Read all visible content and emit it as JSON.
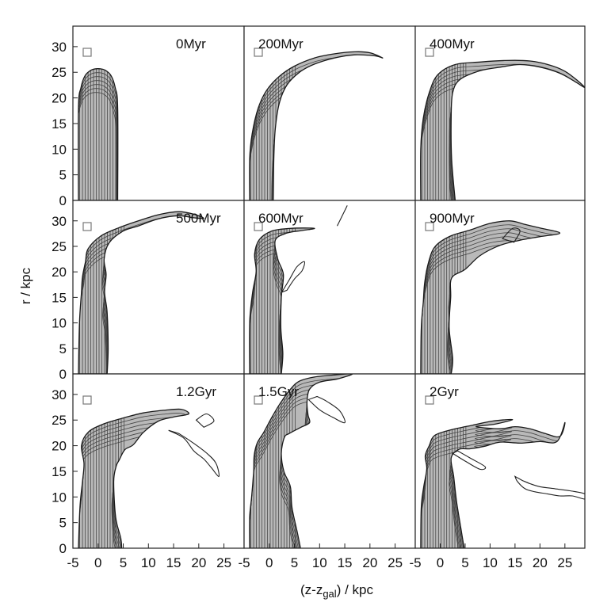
{
  "chart_data": {
    "type": "contour",
    "grid": {
      "rows": 3,
      "cols": 3
    },
    "xlabel": "(z-z",
    "xlabel_sub": "gal",
    "xlabel_tail": ") / kpc",
    "ylabel": "r / kpc",
    "xlim": [
      -5,
      29
    ],
    "ylim": [
      0,
      34
    ],
    "xticks": [
      "-5",
      "0",
      "5",
      "10",
      "15",
      "20",
      "25"
    ],
    "yticks": [
      "0",
      "5",
      "10",
      "15",
      "20",
      "25",
      "30"
    ],
    "panels": [
      {
        "label": "0Myr",
        "time_myr": 0,
        "outer_outline": [
          [
            -3.9,
            0
          ],
          [
            -3.9,
            18
          ],
          [
            -3.4,
            22
          ],
          [
            -2.6,
            24.3
          ],
          [
            -1.4,
            25.4
          ],
          [
            0,
            25.7
          ],
          [
            1.4,
            25.4
          ],
          [
            2.6,
            24.3
          ],
          [
            3.4,
            22
          ],
          [
            3.9,
            18
          ],
          [
            3.9,
            0
          ]
        ],
        "streams": []
      },
      {
        "label": "200Myr",
        "time_myr": 200,
        "outer_outline": [
          [
            -3.9,
            0
          ],
          [
            -3.9,
            8
          ],
          [
            -3.4,
            13
          ],
          [
            -2.2,
            18
          ],
          [
            -0.5,
            21.5
          ],
          [
            2,
            24.2
          ],
          [
            5,
            26.2
          ],
          [
            9,
            27.8
          ],
          [
            13,
            28.6
          ],
          [
            17,
            29
          ],
          [
            20,
            28.8
          ],
          [
            22.5,
            27.8
          ],
          [
            21,
            28.2
          ],
          [
            17,
            28.4
          ],
          [
            13,
            27.8
          ],
          [
            9,
            26.6
          ],
          [
            6,
            25
          ],
          [
            3.5,
            22.5
          ],
          [
            2,
            19
          ],
          [
            1.2,
            14
          ],
          [
            0.9,
            8
          ],
          [
            0.8,
            0
          ]
        ],
        "streams": []
      },
      {
        "label": "400Myr",
        "time_myr": 400,
        "outer_outline": [
          [
            -3.9,
            0
          ],
          [
            -3.9,
            10
          ],
          [
            -3.4,
            16
          ],
          [
            -2.2,
            21
          ],
          [
            -0.5,
            24.5
          ],
          [
            3,
            26.5
          ],
          [
            8,
            27
          ],
          [
            13,
            27.3
          ],
          [
            18,
            27.2
          ],
          [
            22,
            26.4
          ],
          [
            25,
            25.2
          ],
          [
            27.5,
            23.4
          ],
          [
            29,
            22
          ],
          [
            27,
            23.2
          ],
          [
            24,
            24.8
          ],
          [
            20,
            26
          ],
          [
            16,
            26.5
          ],
          [
            12,
            26
          ],
          [
            8,
            25.3
          ],
          [
            4,
            23.6
          ],
          [
            2.5,
            21
          ],
          [
            2.2,
            16
          ],
          [
            2.3,
            8
          ],
          [
            3,
            0
          ]
        ],
        "streams": []
      },
      {
        "label": "500Myr",
        "time_myr": 500,
        "outer_outline": [
          [
            -3.9,
            0
          ],
          [
            -3.7,
            10
          ],
          [
            -3.3,
            16
          ],
          [
            -3.1,
            19
          ],
          [
            -2.5,
            22
          ],
          [
            -2,
            24.5
          ],
          [
            0.5,
            27
          ],
          [
            4,
            28.6
          ],
          [
            8,
            30
          ],
          [
            12,
            31.2
          ],
          [
            16,
            31.8
          ],
          [
            19,
            31.3
          ],
          [
            21,
            30.5
          ],
          [
            19,
            30.6
          ],
          [
            16,
            31
          ],
          [
            12,
            30.4
          ],
          [
            8,
            29
          ],
          [
            5,
            28
          ],
          [
            2.2,
            25.7
          ],
          [
            1.2,
            22.5
          ],
          [
            1.6,
            19.5
          ],
          [
            1.3,
            16
          ],
          [
            1.8,
            12
          ],
          [
            2,
            5
          ],
          [
            1.8,
            0
          ]
        ],
        "streams": []
      },
      {
        "label": "600Myr",
        "time_myr": 600,
        "outer_outline": [
          [
            -3.9,
            0
          ],
          [
            -3.9,
            10
          ],
          [
            -3.3,
            16
          ],
          [
            -2.6,
            20
          ],
          [
            -2.9,
            23.5
          ],
          [
            -2,
            26.3
          ],
          [
            0.5,
            28
          ],
          [
            4,
            28.5
          ],
          [
            7,
            28.6
          ],
          [
            9,
            28.5
          ],
          [
            6.5,
            28.1
          ],
          [
            3.5,
            27.6
          ],
          [
            1.2,
            26.2
          ],
          [
            1.7,
            22.5
          ],
          [
            2.8,
            19.5
          ],
          [
            2.4,
            15
          ],
          [
            2.3,
            9
          ],
          [
            2.7,
            4
          ],
          [
            2.4,
            0
          ]
        ],
        "streams": [
          [
            [
              2.5,
              16
            ],
            [
              4,
              18.5
            ],
            [
              5.5,
              21
            ],
            [
              7,
              22
            ],
            [
              6.5,
              20.2
            ],
            [
              5,
              18.6
            ],
            [
              3.5,
              16.4
            ]
          ],
          [
            [
              13.5,
              29
            ],
            [
              14.5,
              31
            ],
            [
              15.5,
              33
            ]
          ]
        ]
      },
      {
        "label": "900Myr",
        "time_myr": 900,
        "outer_outline": [
          [
            -3.9,
            0
          ],
          [
            -3.8,
            9
          ],
          [
            -3.4,
            14
          ],
          [
            -3.1,
            18
          ],
          [
            -2.3,
            22
          ],
          [
            -1,
            25
          ],
          [
            2,
            27
          ],
          [
            6,
            28.2
          ],
          [
            10,
            29.5
          ],
          [
            14,
            30
          ],
          [
            17,
            29.3
          ],
          [
            20,
            28.6
          ],
          [
            24,
            27.6
          ],
          [
            20,
            26.9
          ],
          [
            16,
            26.2
          ],
          [
            12,
            25.2
          ],
          [
            8,
            23.2
          ],
          [
            5,
            20.5
          ],
          [
            2.3,
            18.8
          ],
          [
            2.1,
            15
          ],
          [
            1.8,
            9
          ],
          [
            2.5,
            3
          ],
          [
            2.2,
            0
          ]
        ],
        "streams": [
          [
            [
              12.5,
              26.5
            ],
            [
              14.5,
              28.5
            ],
            [
              16,
              28
            ],
            [
              14.8,
              25.8
            ]
          ]
        ]
      },
      {
        "label": "1.2Gyr",
        "time_myr": 1200,
        "outer_outline": [
          [
            -3.9,
            0
          ],
          [
            -3.6,
            8
          ],
          [
            -3.1,
            13
          ],
          [
            -2.8,
            16.5
          ],
          [
            -3.3,
            20
          ],
          [
            -2,
            22.6
          ],
          [
            1,
            24.2
          ],
          [
            5,
            25.4
          ],
          [
            9,
            26.4
          ],
          [
            13,
            26.9
          ],
          [
            16.5,
            27.1
          ],
          [
            18,
            26.2
          ],
          [
            15,
            25.6
          ],
          [
            12,
            24.8
          ],
          [
            9,
            22.6
          ],
          [
            7,
            20.2
          ],
          [
            5.3,
            19.2
          ],
          [
            4.2,
            17.2
          ],
          [
            3.6,
            16
          ],
          [
            3.1,
            13
          ],
          [
            3.5,
            6
          ],
          [
            4.5,
            2
          ],
          [
            4.7,
            0
          ]
        ],
        "streams": [
          [
            [
              14,
              23
            ],
            [
              17,
              21.5
            ],
            [
              19,
              19
            ],
            [
              21,
              17.4
            ],
            [
              22.5,
              15.7
            ],
            [
              24,
              14
            ],
            [
              23.4,
              16.6
            ],
            [
              21.5,
              18.6
            ],
            [
              18.5,
              20.8
            ],
            [
              16,
              22.4
            ]
          ],
          [
            [
              19.5,
              25
            ],
            [
              21.5,
              26.2
            ],
            [
              23,
              24.8
            ],
            [
              21,
              23.6
            ]
          ]
        ]
      },
      {
        "label": "1.5Gyr",
        "time_myr": 1500,
        "outer_outline": [
          [
            -3.9,
            0
          ],
          [
            -3.9,
            6
          ],
          [
            -3.5,
            10
          ],
          [
            -3.1,
            15
          ],
          [
            -3,
            18
          ],
          [
            -2.4,
            20.5
          ],
          [
            -1.1,
            22.6
          ],
          [
            0.5,
            25.5
          ],
          [
            2,
            28
          ],
          [
            4.2,
            31
          ],
          [
            6,
            32.6
          ],
          [
            9,
            33.4
          ],
          [
            13,
            33.8
          ],
          [
            16.5,
            34
          ],
          [
            13.5,
            33
          ],
          [
            10,
            32.4
          ],
          [
            8,
            31
          ],
          [
            7.5,
            28.5
          ],
          [
            7.7,
            26
          ],
          [
            8,
            24.5
          ],
          [
            6.3,
            23.6
          ],
          [
            4,
            22.4
          ],
          [
            3,
            21.6
          ],
          [
            2.4,
            18.5
          ],
          [
            2.9,
            15
          ],
          [
            4.2,
            12
          ],
          [
            4.5,
            8
          ],
          [
            5.6,
            3
          ],
          [
            6.2,
            0
          ]
        ],
        "streams": [
          [
            [
              7.8,
              29
            ],
            [
              10,
              27
            ],
            [
              12.5,
              25.6
            ],
            [
              15,
              24.5
            ],
            [
              14,
              26.8
            ],
            [
              11.5,
              28.6
            ],
            [
              9.5,
              29.6
            ]
          ]
        ]
      },
      {
        "label": "2Gyr",
        "time_myr": 2000,
        "outer_outline": [
          [
            -3.9,
            0
          ],
          [
            -3.8,
            8
          ],
          [
            -3.3,
            12
          ],
          [
            -2.7,
            15.5
          ],
          [
            -3,
            18
          ],
          [
            -2.2,
            20
          ],
          [
            -1.1,
            22
          ],
          [
            2.2,
            23.1
          ],
          [
            6.5,
            24
          ],
          [
            10.5,
            24.8
          ],
          [
            14.5,
            25.1
          ],
          [
            11,
            24.2
          ],
          [
            7.2,
            23.7
          ],
          [
            12,
            23.3
          ],
          [
            15,
            23.7
          ],
          [
            18,
            23.3
          ],
          [
            21,
            22.4
          ],
          [
            24,
            21.8
          ],
          [
            25,
            24.5
          ],
          [
            23.4,
            20.8
          ],
          [
            20,
            20.8
          ],
          [
            16,
            20.5
          ],
          [
            12,
            20.7
          ],
          [
            9,
            19.9
          ],
          [
            6,
            19.4
          ],
          [
            3.8,
            19.3
          ],
          [
            2.2,
            17.6
          ],
          [
            2.7,
            14
          ],
          [
            3.3,
            9
          ],
          [
            4.3,
            3
          ],
          [
            4.8,
            0
          ]
        ],
        "streams": [
          [
            [
              2.5,
              18.5
            ],
            [
              5,
              17
            ],
            [
              8,
              15.4
            ],
            [
              9,
              15.9
            ],
            [
              6,
              17.6
            ],
            [
              3.5,
              19
            ]
          ],
          [
            [
              15,
              14
            ],
            [
              15.5,
              13
            ],
            [
              17,
              11.6
            ],
            [
              19,
              11
            ],
            [
              21.5,
              10.6
            ],
            [
              24,
              10.2
            ],
            [
              26.5,
              10.2
            ],
            [
              29,
              9.6
            ],
            [
              29,
              10.6
            ],
            [
              26,
              11.2
            ],
            [
              23,
              11.6
            ],
            [
              20,
              12
            ],
            [
              18,
              12.6
            ],
            [
              16.5,
              13.2
            ]
          ]
        ]
      }
    ]
  }
}
